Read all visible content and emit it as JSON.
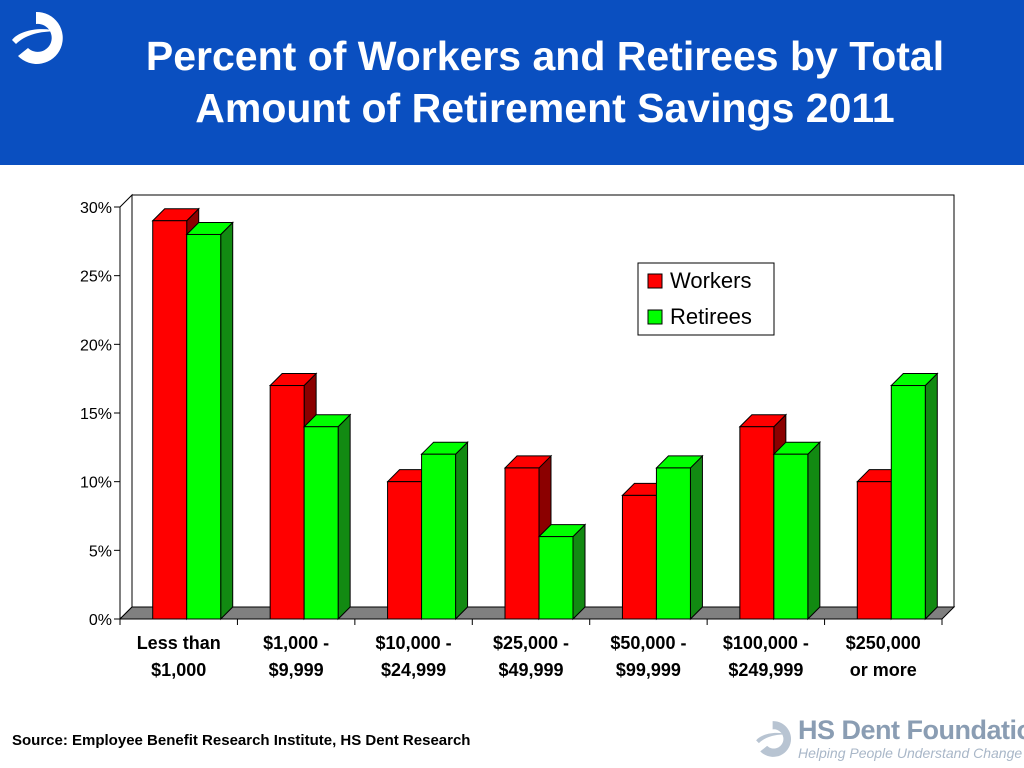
{
  "title": {
    "line1": "Percent of Workers and Retirees by Total",
    "line2": "Amount of Retirement Savings 2011"
  },
  "source": "Source: Employee Benefit Research Institute, HS Dent Research",
  "footer": {
    "brand": "HS Dent Foundation",
    "tagline": "Helping People Understand Change"
  },
  "colors": {
    "header_bg": "#0a4fc0",
    "workers": "#ff0000",
    "workers_side": "#8b0000",
    "retirees": "#00ff00",
    "retirees_side": "#128a12",
    "floor": "#808080"
  },
  "chart_data": {
    "type": "bar",
    "categories": [
      [
        "Less than",
        "$1,000"
      ],
      [
        "$1,000 -",
        "$9,999"
      ],
      [
        "$10,000 -",
        "$24,999"
      ],
      [
        "$25,000 -",
        "$49,999"
      ],
      [
        "$50,000 -",
        "$99,999"
      ],
      [
        "$100,000 -",
        "$249,999"
      ],
      [
        "$250,000",
        "or more"
      ]
    ],
    "series": [
      {
        "name": "Workers",
        "values": [
          29,
          17,
          10,
          11,
          9,
          14,
          10
        ]
      },
      {
        "name": "Retirees",
        "values": [
          28,
          14,
          12,
          6,
          11,
          12,
          17
        ]
      }
    ],
    "ylim": [
      0,
      30
    ],
    "yticks": [
      "0%",
      "5%",
      "10%",
      "15%",
      "20%",
      "25%",
      "30%"
    ],
    "ytick_values": [
      0,
      5,
      10,
      15,
      20,
      25,
      30
    ],
    "legend_position": "top-right",
    "grid": false,
    "style": "3d"
  }
}
